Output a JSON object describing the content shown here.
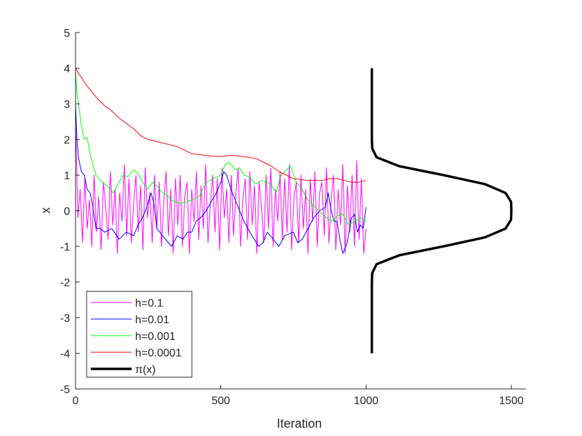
{
  "chart_data": {
    "type": "line",
    "xlabel": "Iteration",
    "ylabel": "x",
    "xlim": [
      0,
      1550
    ],
    "ylim": [
      -5,
      5
    ],
    "xticks": [
      0,
      500,
      1000,
      1500
    ],
    "yticks": [
      -5,
      -4,
      -3,
      -2,
      -1,
      0,
      1,
      2,
      3,
      4,
      5
    ],
    "grid": false,
    "box": false,
    "legend_position": "bottom-left",
    "series": [
      {
        "name": "h=0.1",
        "color": "#ff00ff",
        "width": 1,
        "x": [
          0,
          8,
          16,
          24,
          32,
          40,
          48,
          56,
          64,
          72,
          80,
          88,
          96,
          104,
          112,
          120,
          128,
          136,
          144,
          152,
          160,
          168,
          176,
          184,
          192,
          200,
          208,
          216,
          224,
          232,
          240,
          248,
          256,
          264,
          272,
          280,
          288,
          296,
          304,
          312,
          320,
          328,
          336,
          344,
          352,
          360,
          368,
          376,
          384,
          392,
          400,
          408,
          416,
          424,
          432,
          440,
          448,
          456,
          464,
          472,
          480,
          488,
          496,
          504,
          512,
          520,
          528,
          536,
          544,
          552,
          560,
          568,
          576,
          584,
          592,
          600,
          608,
          616,
          624,
          632,
          640,
          648,
          656,
          664,
          672,
          680,
          688,
          696,
          704,
          712,
          720,
          728,
          736,
          744,
          752,
          760,
          768,
          776,
          784,
          792,
          800,
          808,
          816,
          824,
          832,
          840,
          848,
          856,
          864,
          872,
          880,
          888,
          896,
          904,
          912,
          920,
          928,
          936,
          944,
          952,
          960,
          968,
          976,
          984,
          992,
          1000
        ],
        "y": [
          2.6,
          -0.2,
          0.6,
          -0.9,
          0.9,
          -0.5,
          0.3,
          -1.0,
          1.0,
          -0.6,
          0.4,
          -1.1,
          0.8,
          0.1,
          -0.8,
          1.1,
          -0.4,
          0.6,
          -1.2,
          0.5,
          -0.3,
          1.3,
          -0.7,
          0.9,
          -0.9,
          0.2,
          1.0,
          -0.6,
          0.7,
          -1.1,
          1.2,
          -0.2,
          0.5,
          -0.9,
          1.0,
          -0.5,
          0.8,
          -1.0,
          0.3,
          1.1,
          -0.7,
          0.6,
          -1.2,
          0.9,
          -0.4,
          1.0,
          -1.0,
          0.4,
          0.8,
          -1.2,
          0.6,
          -0.3,
          1.1,
          -0.8,
          0.7,
          -0.5,
          1.3,
          -0.9,
          0.2,
          1.0,
          -0.6,
          0.9,
          -1.1,
          1.2,
          -0.2,
          0.6,
          -0.9,
          1.0,
          -0.7,
          0.5,
          1.2,
          -1.0,
          0.3,
          0.9,
          -0.8,
          1.1,
          -0.4,
          0.7,
          -1.2,
          0.8,
          0.1,
          -0.9,
          1.0,
          -0.5,
          1.2,
          -1.0,
          0.6,
          -0.3,
          1.1,
          -0.8,
          0.9,
          -0.6,
          1.3,
          -1.1,
          0.4,
          0.8,
          -0.9,
          1.0,
          -0.5,
          0.6,
          -1.2,
          0.9,
          -0.3,
          1.1,
          -1.0,
          0.5,
          0.8,
          -0.7,
          1.2,
          -0.9,
          0.3,
          1.0,
          -1.1,
          0.6,
          -0.4,
          1.3,
          -1.2,
          0.7,
          -0.6,
          1.0,
          -1.0,
          1.4,
          -0.8,
          0.9,
          -1.2,
          -0.5
        ]
      },
      {
        "name": "h=0.01",
        "color": "#0000ff",
        "width": 1,
        "x": [
          0,
          5,
          10,
          20,
          30,
          40,
          50,
          60,
          70,
          85,
          100,
          125,
          150,
          175,
          200,
          215,
          230,
          245,
          260,
          270,
          280,
          300,
          330,
          350,
          370,
          385,
          400,
          415,
          430,
          450,
          470,
          485,
          500,
          510,
          520,
          535,
          550,
          565,
          580,
          600,
          615,
          630,
          645,
          660,
          680,
          700,
          720,
          750,
          765,
          780,
          800,
          820,
          840,
          860,
          870,
          880,
          890,
          900,
          910,
          920,
          935,
          950,
          960,
          970,
          980,
          990,
          1000
        ],
        "y": [
          3.0,
          2.0,
          1.5,
          1.1,
          1.0,
          0.6,
          0.5,
          0.1,
          -0.5,
          -0.5,
          -0.6,
          -0.5,
          -0.8,
          -0.6,
          -0.7,
          -0.4,
          -0.2,
          0.1,
          0.5,
          0.2,
          -0.5,
          -0.7,
          -1.0,
          -0.7,
          -0.8,
          -0.6,
          -0.6,
          -0.3,
          -0.2,
          0.0,
          0.3,
          0.5,
          0.8,
          1.1,
          1.0,
          0.6,
          0.3,
          0.0,
          -0.3,
          -0.6,
          -0.8,
          -1.0,
          -0.9,
          -0.6,
          -0.8,
          -1.0,
          -0.7,
          -0.6,
          -0.9,
          -0.8,
          -0.5,
          -0.2,
          0.0,
          0.1,
          0.5,
          0.0,
          -0.3,
          -0.3,
          -0.8,
          -1.2,
          -0.9,
          -0.2,
          -0.1,
          -0.6,
          -0.4,
          -0.5,
          0.1
        ]
      },
      {
        "name": "h=0.001",
        "color": "#00ff00",
        "width": 1,
        "x": [
          0,
          5,
          10,
          20,
          30,
          40,
          50,
          60,
          70,
          80,
          100,
          115,
          130,
          150,
          165,
          180,
          200,
          215,
          230,
          250,
          265,
          280,
          300,
          315,
          330,
          360,
          380,
          400,
          425,
          450,
          475,
          500,
          515,
          530,
          550,
          565,
          580,
          600,
          620,
          640,
          660,
          675,
          690,
          705,
          720,
          740,
          760,
          780,
          800,
          825,
          850,
          880,
          900,
          920,
          940,
          960,
          980,
          1000
        ],
        "y": [
          3.9,
          3.3,
          3.0,
          2.4,
          2.0,
          2.05,
          1.6,
          1.3,
          1.0,
          0.9,
          0.75,
          0.65,
          0.5,
          0.8,
          1.0,
          0.95,
          1.15,
          1.05,
          0.8,
          0.6,
          0.8,
          0.7,
          0.5,
          0.45,
          0.3,
          0.2,
          0.25,
          0.3,
          0.4,
          0.8,
          0.9,
          1.0,
          1.3,
          1.35,
          1.15,
          1.2,
          1.0,
          0.95,
          0.75,
          0.85,
          0.8,
          0.7,
          0.5,
          0.95,
          1.1,
          1.25,
          0.8,
          0.6,
          0.3,
          0.1,
          -0.1,
          -0.3,
          -0.15,
          -0.1,
          -0.4,
          -0.3,
          -0.2,
          -0.3
        ]
      },
      {
        "name": "h=0.0001",
        "color": "#ff0000",
        "width": 1,
        "x": [
          0,
          10,
          20,
          35,
          50,
          75,
          100,
          125,
          150,
          175,
          200,
          225,
          250,
          275,
          300,
          325,
          350,
          375,
          400,
          425,
          450,
          475,
          500,
          525,
          550,
          575,
          600,
          625,
          650,
          675,
          700,
          725,
          750,
          775,
          800,
          825,
          850,
          875,
          900,
          925,
          950,
          975,
          1000
        ],
        "y": [
          4.0,
          3.85,
          3.75,
          3.55,
          3.4,
          3.15,
          2.95,
          2.8,
          2.6,
          2.45,
          2.3,
          2.1,
          2.0,
          1.95,
          1.9,
          1.85,
          1.8,
          1.7,
          1.6,
          1.58,
          1.55,
          1.53,
          1.52,
          1.55,
          1.55,
          1.52,
          1.5,
          1.45,
          1.35,
          1.25,
          1.1,
          1.0,
          0.9,
          0.88,
          0.85,
          0.85,
          0.85,
          0.9,
          0.9,
          0.85,
          0.8,
          0.8,
          0.85
        ]
      },
      {
        "name": "π(x)",
        "color": "#000000",
        "width": 3.5,
        "x": [
          1020,
          1020,
          1020,
          1020,
          1020,
          1020,
          1020,
          1020,
          1021,
          1036,
          1114,
          1266,
          1408,
          1480,
          1499,
          1500,
          1499,
          1480,
          1408,
          1266,
          1114,
          1036,
          1021,
          1020,
          1020,
          1020,
          1020,
          1020,
          1020,
          1020,
          1020,
          1020,
          1020
        ],
        "y": [
          -4,
          -3.75,
          -3.5,
          -3.25,
          -3,
          -2.75,
          -2.5,
          -2,
          -1.75,
          -1.5,
          -1.25,
          -1,
          -0.75,
          -0.5,
          -0.25,
          0,
          0.25,
          0.5,
          0.75,
          1,
          1.25,
          1.5,
          1.75,
          2,
          2.25,
          2.5,
          2.75,
          3,
          3.25,
          3.5,
          3.75,
          3.9,
          4
        ]
      }
    ]
  }
}
